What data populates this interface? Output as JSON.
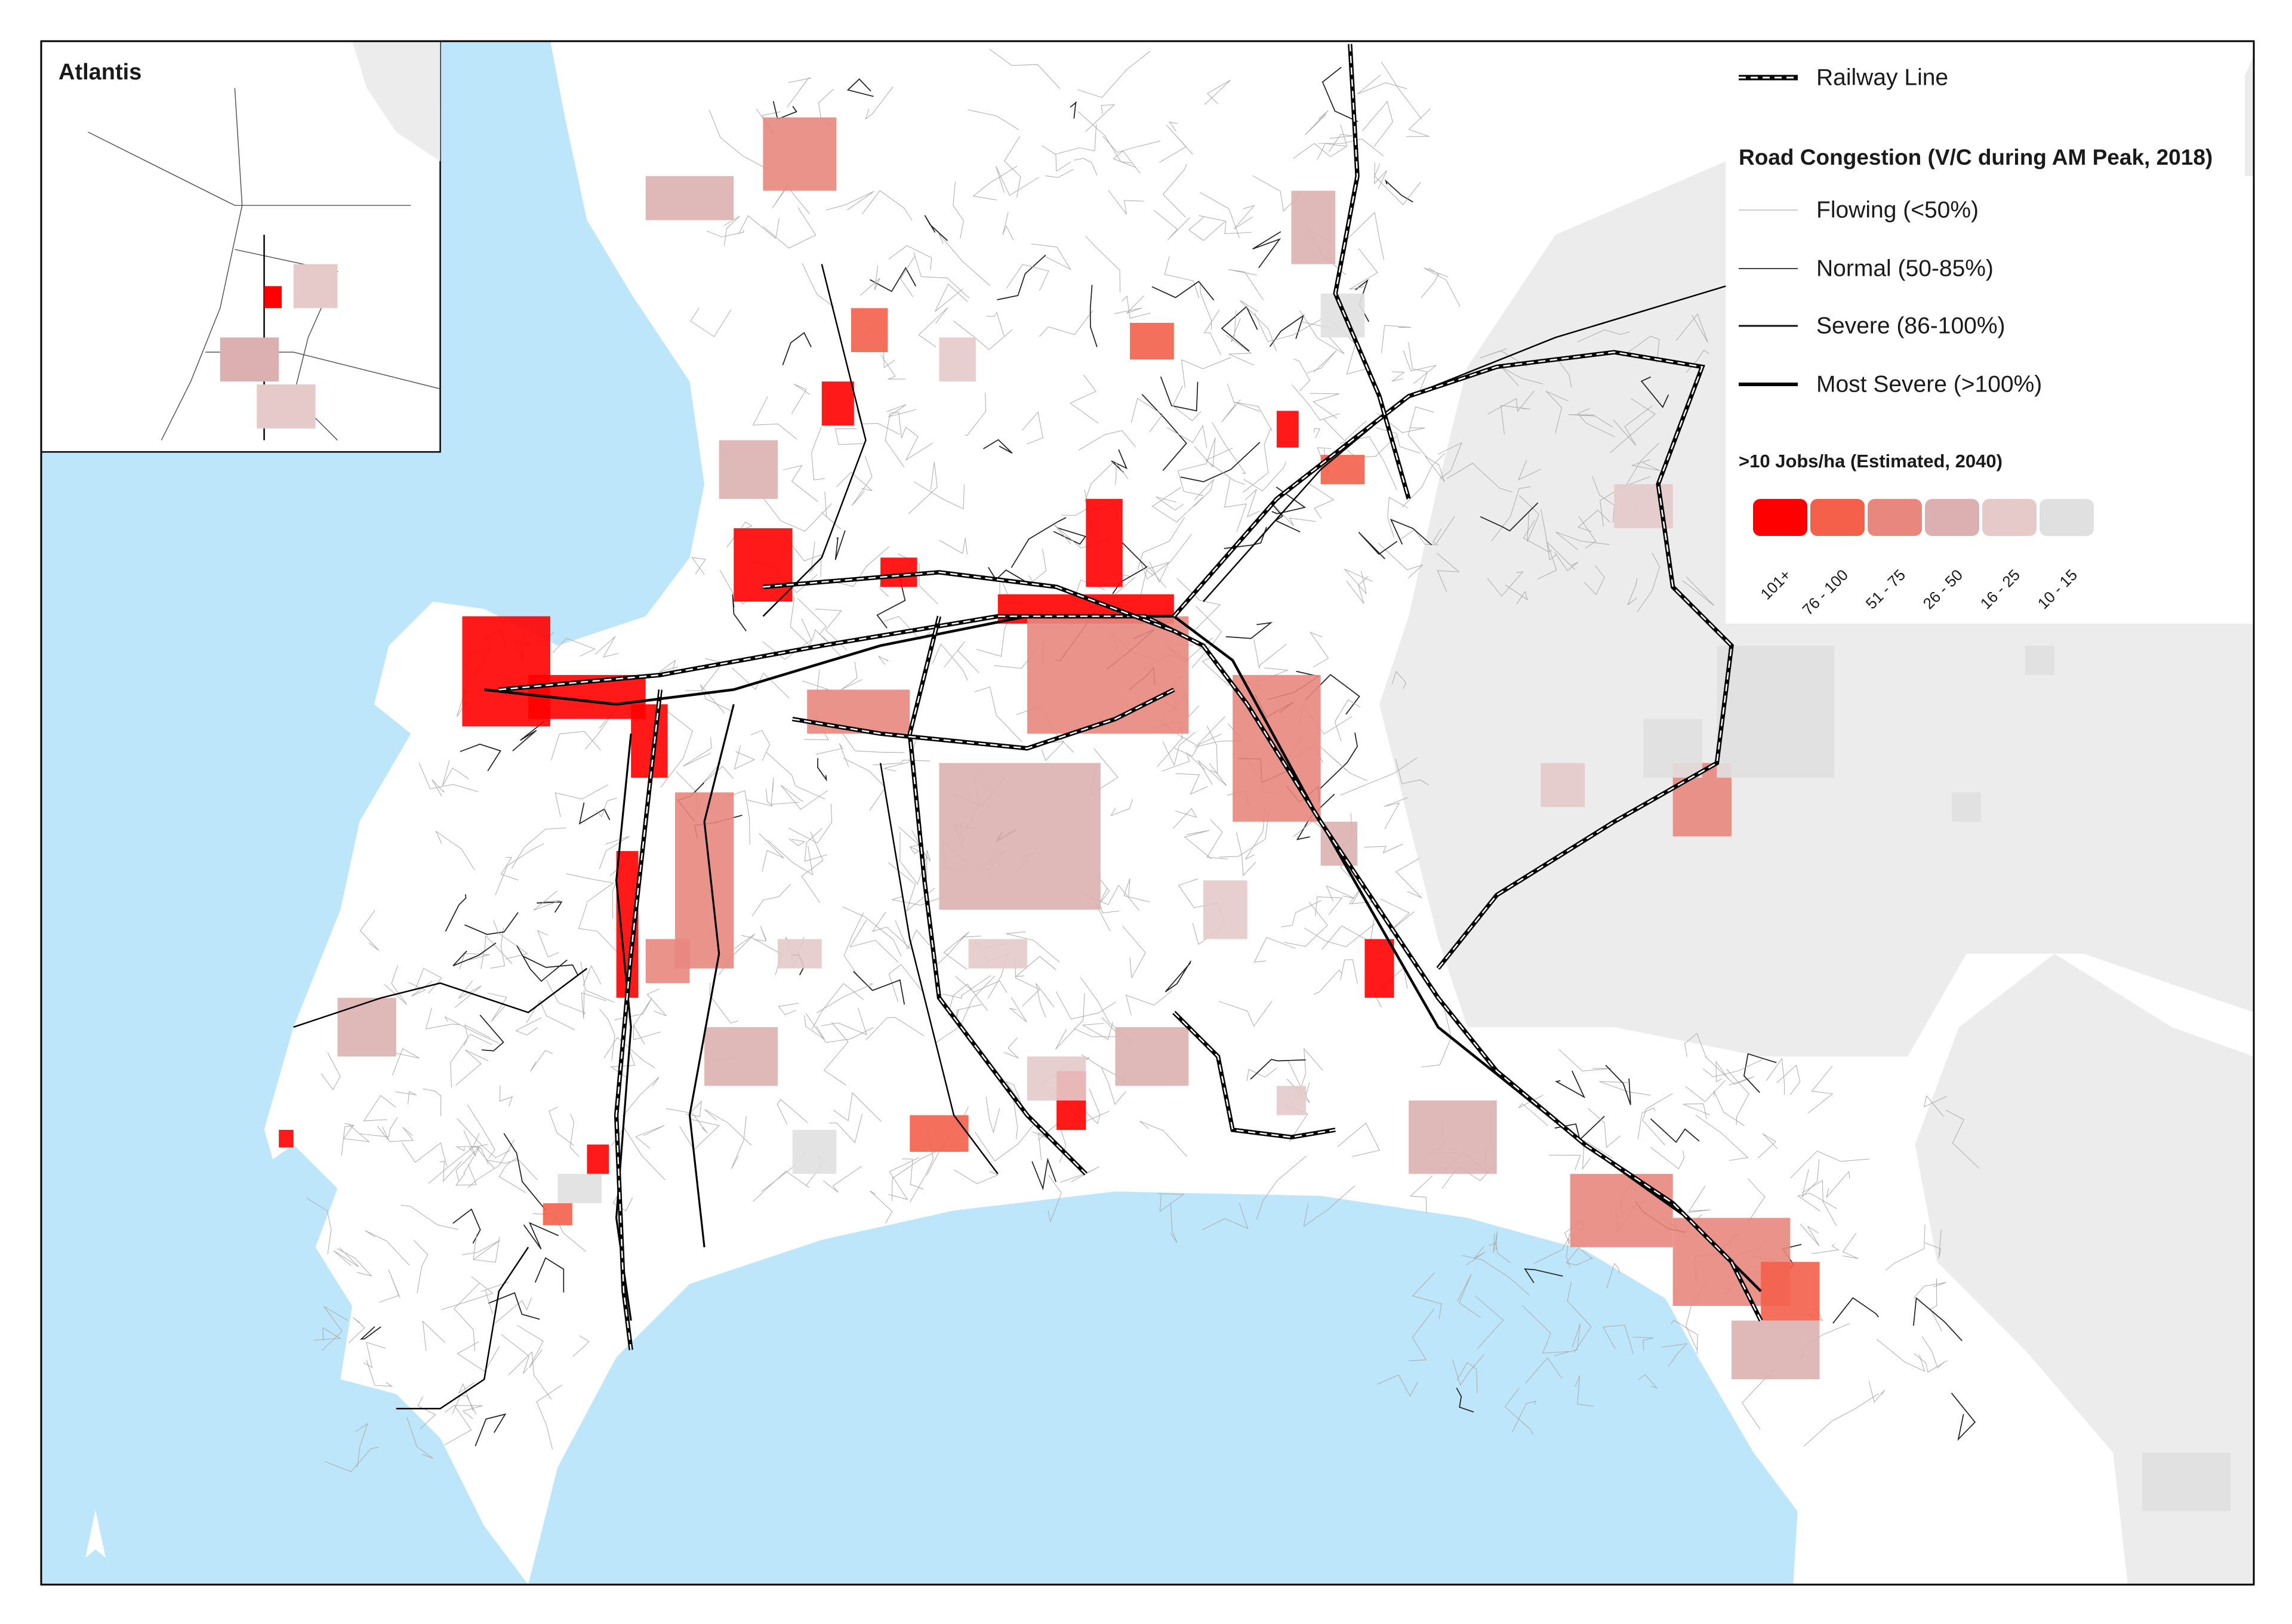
{
  "inset": {
    "title": "Atlantis"
  },
  "legend": {
    "railway": "Railway Line",
    "congestion": {
      "title": "Road Congestion (V/C during AM Peak, 2018)",
      "items": [
        {
          "label": "Flowing (<50%)"
        },
        {
          "label": "Normal (50-85%)"
        },
        {
          "label": "Severe (86-100%)"
        },
        {
          "label": "Most Severe (>100%)"
        }
      ]
    },
    "jobs": {
      "title": ">10 Jobs/ha (Estimated, 2040)",
      "classes": [
        {
          "label": "101+",
          "color": "#ff0000"
        },
        {
          "label": "76 - 100",
          "color": "#f4604a"
        },
        {
          "label": "51 - 75",
          "color": "#e8877e"
        },
        {
          "label": "26 - 50",
          "color": "#dcb0b0"
        },
        {
          "label": "16 - 25",
          "color": "#e6caca"
        },
        {
          "label": "10 - 15",
          "color": "#e0e0e0"
        }
      ]
    }
  }
}
